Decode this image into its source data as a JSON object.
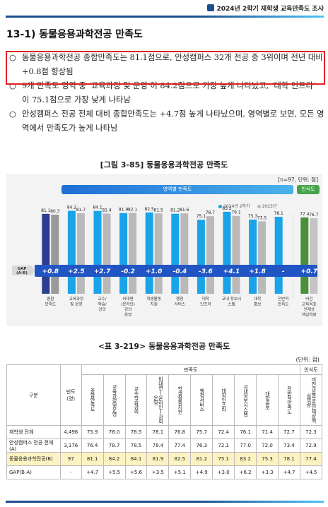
{
  "header": {
    "title": "2024년 2학기 재학생 교육만족도 조사"
  },
  "section_title": "13-1) 동물응용과학전공 만족도",
  "bullets": [
    {
      "mark": "○",
      "text": "동물응용과학전공 종합만족도는 81.1점으로, 안성캠퍼스 32개 전공 중 3위이며 전년 대비 +0.8점 향상됨"
    },
    {
      "mark": "○",
      "text": "9개 만족도 영역 중 ‘교육과정 및 운영’이 84.2점으로 가장 높게 나타났고, ‘대학 인프라’ 이 75.1점으로 가장 낮게 나타남"
    },
    {
      "mark": "○",
      "text": "안성캠퍼스 전공 전체 대비 종합만족도는 +4.7점 높게 나타났으며, 영역별로 보면, 모든 영역에서 만족도가 높게 나타남"
    }
  ],
  "figure": {
    "title": "[그림 3-85] 동물응용과학전공 만족도",
    "note": "[n=97, 단위: 점]",
    "band_main": "영역별 만족도",
    "band_side": "인식도",
    "gap_label": "GAP (A-B)",
    "legend": [
      "2024년 2학기",
      "2023년"
    ]
  },
  "chart_data": {
    "type": "bar",
    "categories": [
      "종합\n만족도",
      "교육과정\n및 운영",
      "교수/\n학습/\n강의",
      "비대면\n(온라인)\n강의\n운영",
      "학생활동\n지원",
      "행정\n서비스",
      "대학\n인프라",
      "교내 정보시\n스템",
      "대학\n홍보",
      "전반적\n만족도",
      "비전\n교육목표\n인재상\n핵심역량"
    ],
    "series": [
      {
        "name": "2024년 2학기",
        "values": [
          81.1,
          84.2,
          84.1,
          81.9,
          82.5,
          81.2,
          75.1,
          83.2,
          75.3,
          78.1,
          77.4
        ]
      },
      {
        "name": "2023년",
        "values": [
          80.3,
          81.7,
          81.4,
          82.1,
          81.5,
          81.6,
          78.7,
          79.1,
          73.5,
          null,
          76.7
        ]
      }
    ],
    "gap": [
      "+0.8",
      "+2.5",
      "+2.7",
      "-0.2",
      "+1.0",
      "-0.4",
      "-3.6",
      "+4.1",
      "+1.8",
      "-",
      "+0.7"
    ],
    "ylim": [
      0,
      100
    ],
    "colors": {
      "first": "#2c3e8f",
      "current": "#1aa3e8",
      "previous": "#b9b9b9",
      "recog": "#4a8f3c",
      "gapbar": "#2255c4"
    }
  },
  "table": {
    "title": "<표 3-219> 동물응용과학전공 만족도",
    "unit": "(단위: 점)",
    "col_group": "만족도",
    "col_recog": "인식도",
    "header_label": "구분",
    "header_count": "빈도\n(명)",
    "columns": [
      "종합만족도",
      "교육과정및운영",
      "교수학습강의",
      "비대면(온라인)강의운영",
      "학생활동지원",
      "행정서비스",
      "대학인프라",
      "교내정보시스템",
      "대학홍보",
      "전반적만족도",
      "비전교육목표인재상핵심역량"
    ],
    "rows": [
      {
        "label": "재학생 전체",
        "count": "4,496",
        "values": [
          "75.9",
          "78.0",
          "78.5",
          "78.1",
          "76.8",
          "75.7",
          "72.4",
          "76.1",
          "71.4",
          "72.7",
          "72.3"
        ]
      },
      {
        "label": "안성캠퍼스 전공 전체(A)",
        "count": "3,176",
        "values": [
          "76.4",
          "78.7",
          "78.5",
          "78.4",
          "77.4",
          "76.3",
          "72.1",
          "77.0",
          "72.0",
          "73.4",
          "72.9"
        ]
      },
      {
        "label": "동물응용과학전공(B)",
        "count": "97",
        "values": [
          "81.1",
          "84.2",
          "84.1",
          "81.9",
          "82.5",
          "81.2",
          "75.1",
          "83.2",
          "75.3",
          "78.1",
          "77.4"
        ]
      },
      {
        "label": "GAP(B-A)",
        "count": "-",
        "values": [
          "+4.7",
          "+5.5",
          "+5.6",
          "+3.5",
          "+5.1",
          "+4.9",
          "+3.0",
          "+6.2",
          "+3.3",
          "+4.7",
          "+4.5"
        ]
      }
    ]
  }
}
